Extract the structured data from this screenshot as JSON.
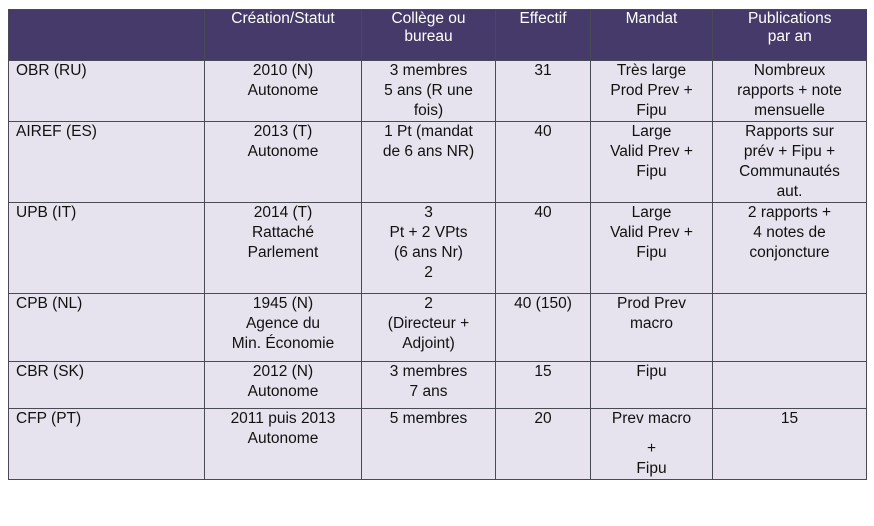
{
  "header": [
    "",
    "Création/Statut",
    "Collège ou bureau",
    "Effectif",
    "Mandat",
    "Publications par an"
  ],
  "header_lines": [
    [
      ""
    ],
    [
      "Création/Statut"
    ],
    [
      "Collège ou",
      "bureau"
    ],
    [
      "Effectif"
    ],
    [
      "Mandat"
    ],
    [
      "Publications",
      "par an"
    ]
  ],
  "rows": [
    {
      "country": "OBR (RU)",
      "creation": [
        "2010 (N)",
        "Autonome"
      ],
      "college": [
        "3 membres",
        "5 ans (R une",
        "fois)"
      ],
      "effectif": "31",
      "mandat": [
        "Très large",
        "Prod Prev +",
        "Fipu"
      ],
      "publications": [
        "Nombreux",
        "rapports + note",
        "mensuelle"
      ]
    },
    {
      "country": "AIREF (ES)",
      "creation": [
        "2013 (T)",
        "Autonome"
      ],
      "college": [
        "1 Pt (mandat",
        "de 6 ans NR)"
      ],
      "effectif": "40",
      "mandat": [
        "Large",
        "Valid Prev +",
        "Fipu"
      ],
      "publications": [
        "Rapports sur",
        "prév + Fipu +",
        "Communautés",
        "aut."
      ]
    },
    {
      "country": "UPB (IT)",
      "creation": [
        "2014 (T)",
        "Rattaché",
        "Parlement"
      ],
      "college": [
        "3",
        "Pt + 2 VPts",
        "(6 ans Nr)",
        "2"
      ],
      "effectif": "40",
      "mandat": [
        "Large",
        "Valid Prev +",
        "Fipu"
      ],
      "publications": [
        "2 rapports +",
        "4 notes de",
        "conjoncture"
      ]
    },
    {
      "country": "CPB (NL)",
      "creation": [
        "1945 (N)",
        "Agence du",
        "Min. Économie"
      ],
      "college": [
        "2",
        "(Directeur +",
        "Adjoint)"
      ],
      "effectif": "40 (150)",
      "mandat": [
        "Prod Prev",
        "macro"
      ],
      "publications": []
    },
    {
      "country": "CBR (SK)",
      "creation": [
        "2012 (N)",
        "Autonome"
      ],
      "college": [
        "3 membres",
        "7 ans"
      ],
      "effectif": "15",
      "mandat": [
        "Fipu"
      ],
      "publications": []
    },
    {
      "country": "CFP (PT)",
      "creation": [
        "2011 puis 2013",
        "Autonome"
      ],
      "college": [
        "5 membres"
      ],
      "effectif": "20",
      "mandat": [
        "Prev macro",
        "",
        "+",
        "Fipu"
      ],
      "publications": [
        "15"
      ]
    }
  ]
}
